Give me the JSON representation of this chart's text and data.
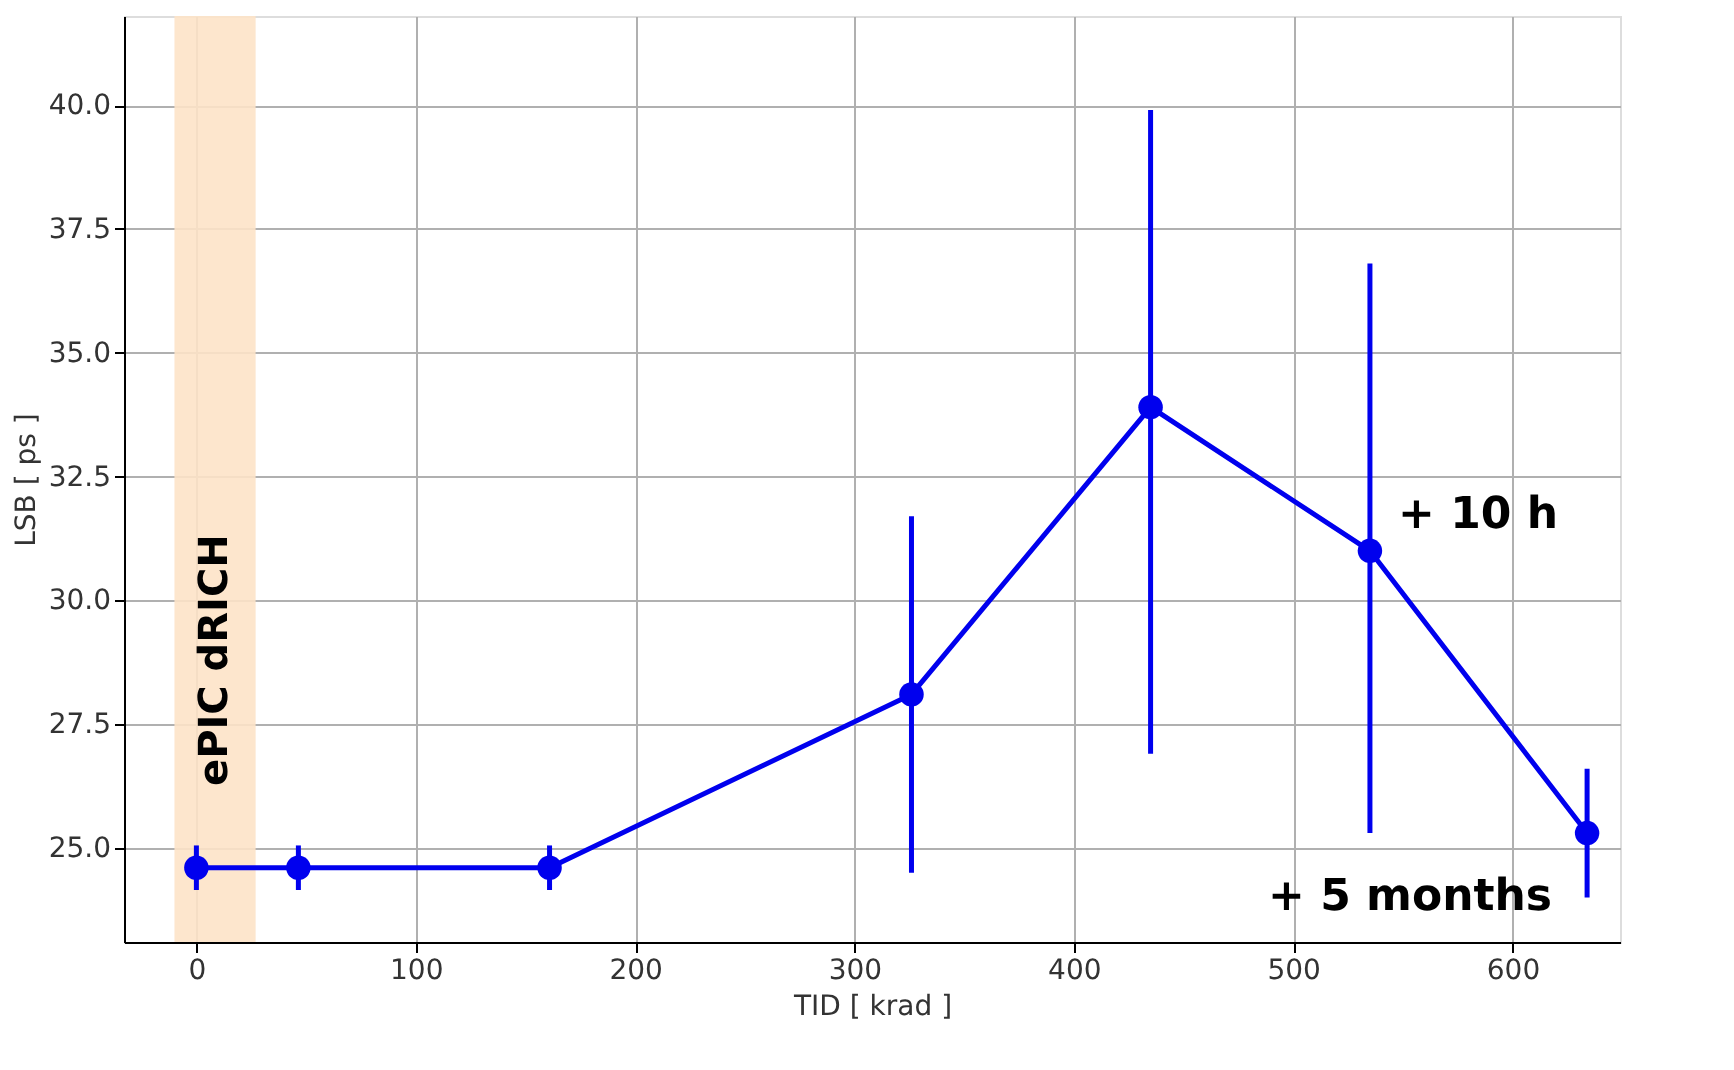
{
  "chart_data": {
    "type": "line",
    "xlabel": "TID [ krad ]",
    "ylabel": "LSB [ ps ]",
    "x": [
      0,
      46.5,
      161,
      326,
      435,
      535,
      634
    ],
    "series": [
      {
        "color": "#0000ee",
        "values": [
          24.6,
          24.6,
          24.6,
          28.1,
          33.9,
          31.0,
          25.3
        ],
        "errors": [
          [
            24.15,
            25.05
          ],
          [
            24.15,
            25.05
          ],
          [
            24.15,
            25.05
          ],
          [
            24.5,
            31.7
          ],
          [
            26.9,
            39.9
          ],
          [
            25.3,
            36.8
          ],
          [
            24.0,
            26.6
          ]
        ]
      }
    ],
    "xlim": [
      -33,
      649
    ],
    "ylim": [
      23.1,
      41.8
    ],
    "xticks": [
      0,
      100,
      200,
      300,
      400,
      500,
      600
    ],
    "yticks": [
      {
        "value": 25,
        "label": "25.0"
      },
      27.5,
      {
        "value": 30,
        "label": "30.0"
      },
      32.5,
      {
        "value": 35,
        "label": "35.0"
      },
      37.5,
      {
        "value": 40,
        "label": "40.0"
      }
    ],
    "bands": [
      {
        "axis": "x",
        "from": -10,
        "to": 27,
        "label": "ePIC dRICH",
        "color": "#fde3c8"
      }
    ],
    "annotations": [
      "+ 10 h",
      "+ 5 months"
    ],
    "grid": true,
    "marker": "circle",
    "line_style": "solid"
  }
}
